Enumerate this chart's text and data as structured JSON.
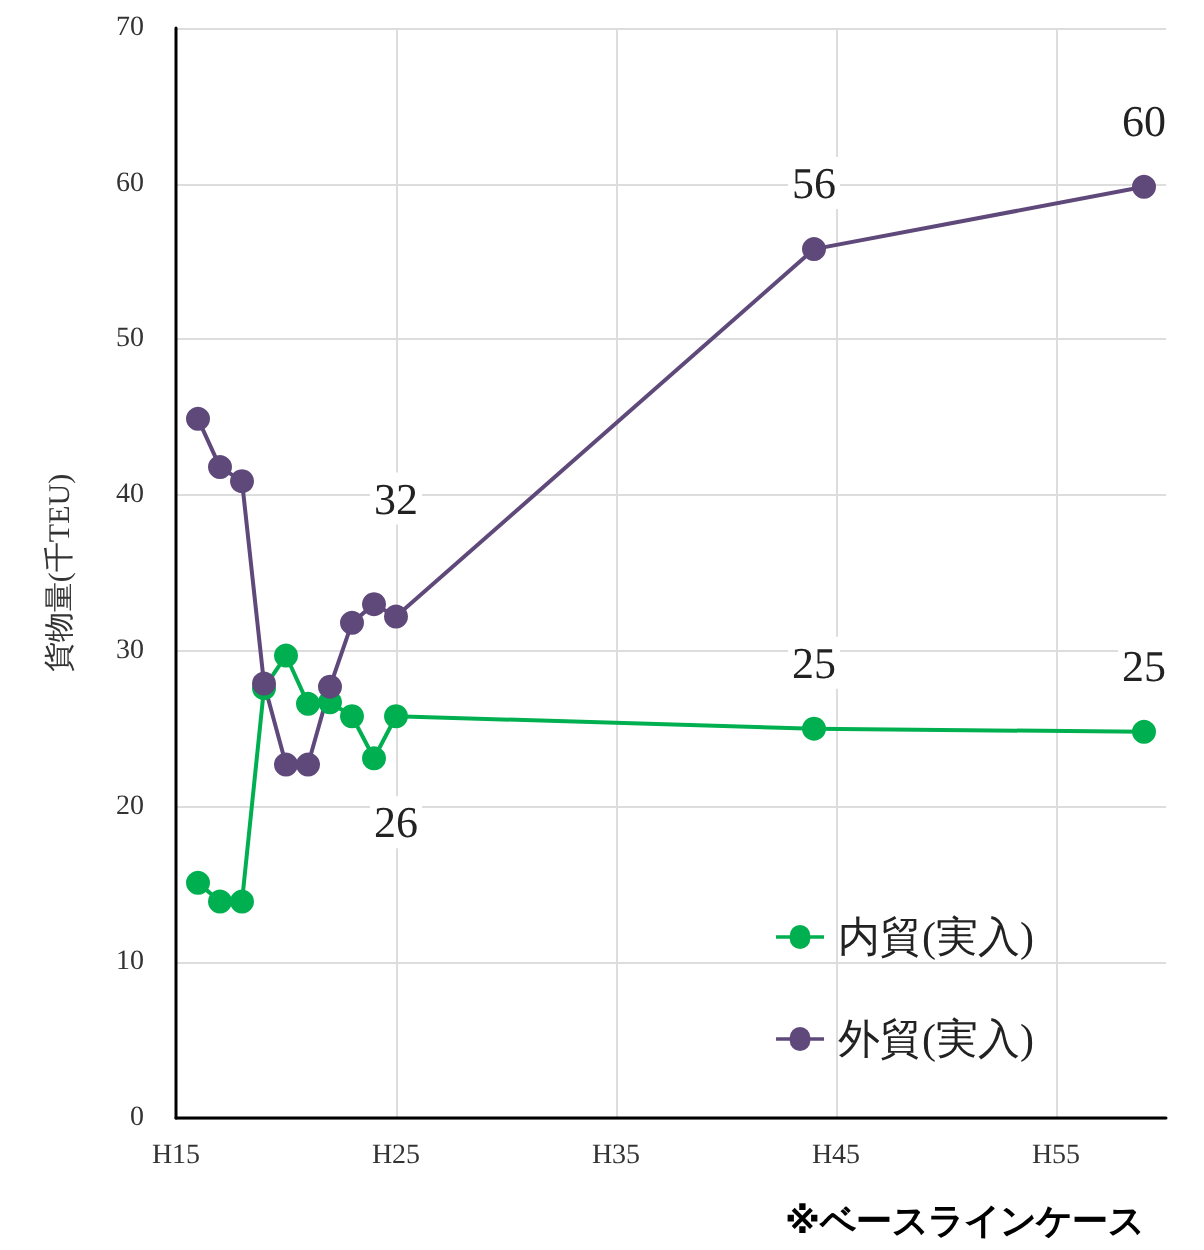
{
  "chart_data": {
    "type": "line",
    "ylabel": "貨物量(千TEU)",
    "categories": [
      "H15",
      null,
      null,
      null,
      null,
      null,
      null,
      null,
      null,
      null,
      "H25",
      null,
      null,
      null,
      null,
      null,
      null,
      null,
      null,
      null,
      "H35",
      null,
      null,
      null,
      null,
      null,
      null,
      null,
      null,
      null,
      "H45",
      null,
      null,
      null,
      null,
      null,
      null,
      null,
      null,
      null,
      "H55",
      null,
      null,
      null,
      null,
      null
    ],
    "series": [
      {
        "name": "内貿(実入)",
        "color": "#00b050",
        "values": [
          null,
          15.1,
          13.9,
          13.9,
          27.6,
          29.7,
          26.6,
          26.7,
          25.8,
          23.1,
          25.8,
          null,
          null,
          null,
          null,
          null,
          null,
          null,
          null,
          null,
          null,
          null,
          null,
          null,
          null,
          null,
          null,
          null,
          null,
          25.0,
          null,
          null,
          null,
          null,
          null,
          null,
          null,
          null,
          null,
          null,
          null,
          null,
          null,
          null,
          24.8,
          null
        ],
        "value_labels": [
          null,
          null,
          null,
          null,
          null,
          null,
          null,
          null,
          null,
          null,
          "26",
          null,
          null,
          null,
          null,
          null,
          null,
          null,
          null,
          null,
          null,
          null,
          null,
          null,
          null,
          null,
          null,
          null,
          null,
          "25",
          null,
          null,
          null,
          null,
          null,
          null,
          null,
          null,
          null,
          null,
          null,
          null,
          null,
          null,
          "25",
          null
        ]
      },
      {
        "name": "外貿(実入)",
        "color": "#5f497a",
        "values": [
          null,
          44.9,
          41.8,
          40.9,
          27.9,
          22.7,
          22.7,
          27.7,
          31.8,
          33.0,
          32.2,
          null,
          null,
          null,
          null,
          null,
          null,
          null,
          null,
          null,
          null,
          null,
          null,
          null,
          null,
          null,
          null,
          null,
          null,
          55.8,
          null,
          null,
          null,
          null,
          null,
          null,
          null,
          null,
          null,
          null,
          null,
          null,
          null,
          null,
          59.8,
          null
        ],
        "value_labels": [
          null,
          null,
          null,
          null,
          null,
          null,
          null,
          null,
          null,
          null,
          "32",
          null,
          null,
          null,
          null,
          null,
          null,
          null,
          null,
          null,
          null,
          null,
          null,
          null,
          null,
          null,
          null,
          null,
          null,
          "56",
          null,
          null,
          null,
          null,
          null,
          null,
          null,
          null,
          null,
          null,
          null,
          null,
          null,
          null,
          "60",
          null
        ]
      }
    ],
    "ylim": [
      0,
      70
    ],
    "yticks": [
      0,
      10,
      20,
      30,
      40,
      50,
      60,
      70
    ],
    "grid": true,
    "legend": "bottom right",
    "marker": "circle",
    "line_style": "solid",
    "annotations": [
      "※ベースラインケース"
    ]
  }
}
